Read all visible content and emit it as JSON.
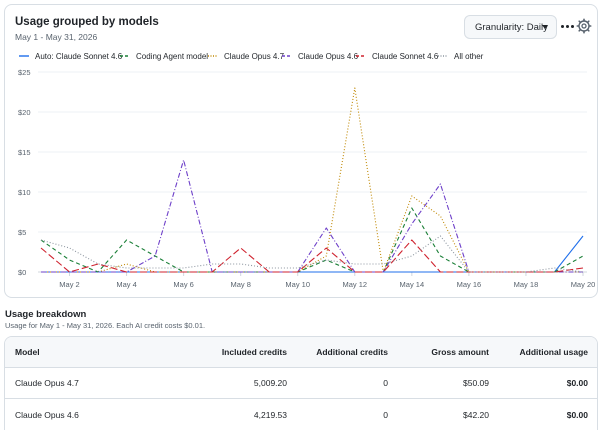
{
  "usage_card": {
    "title": "Usage grouped by models",
    "date_range": "May 1 - May 31, 2026",
    "granularity_label": "Granularity: Daily",
    "more_icon": "kebab-horizontal-icon",
    "settings_icon": "gear-icon"
  },
  "chart_data": {
    "type": "line",
    "title": "",
    "xlabel": "",
    "ylabel": "",
    "x_tick_labels": [
      "May 2",
      "May 4",
      "May 6",
      "May 8",
      "May 10",
      "May 12",
      "May 14",
      "May 16",
      "May 18",
      "May 20"
    ],
    "y_tick_labels": [
      "$0",
      "$5",
      "$10",
      "$15",
      "$20",
      "$25"
    ],
    "ylim": [
      0,
      25
    ],
    "x": [
      1,
      2,
      3,
      4,
      5,
      6,
      7,
      8,
      9,
      10,
      11,
      12,
      13,
      14,
      15,
      16,
      17,
      18,
      19,
      20
    ],
    "grid": "horizontal",
    "legend_position": "top-left",
    "series": [
      {
        "name": "Auto: Claude Sonnet 4.6",
        "color": "#1f6feb",
        "dash": "solid",
        "values": [
          0,
          0,
          0,
          0,
          0,
          0,
          0,
          0,
          0,
          0,
          0,
          0,
          0,
          0,
          0,
          0,
          0,
          0,
          0,
          4.5
        ]
      },
      {
        "name": "Coding Agent model",
        "color": "#1a7f37",
        "dash": "dashed",
        "values": [
          4,
          1.5,
          0,
          4,
          2,
          0,
          0,
          0,
          0,
          0,
          1.5,
          0,
          0,
          8,
          2,
          0,
          0,
          0,
          0,
          2
        ]
      },
      {
        "name": "Claude Opus 4.7",
        "color": "#bf8700",
        "dash": "dotted",
        "values": [
          0,
          0,
          0,
          1,
          0,
          0,
          0,
          0,
          0,
          0,
          2,
          23,
          0,
          9.5,
          7,
          0,
          0,
          0,
          0,
          0
        ]
      },
      {
        "name": "Claude Opus 4.6",
        "color": "#6e40c9",
        "dash": "dashdot",
        "values": [
          0,
          0,
          0,
          0,
          2,
          14,
          0,
          0,
          0,
          0,
          5.5,
          0,
          0,
          6,
          11,
          0,
          0,
          0,
          0,
          0
        ]
      },
      {
        "name": "Claude Sonnet 4.6",
        "color": "#cf222e",
        "dash": "longdash",
        "values": [
          3,
          0,
          1,
          0,
          0,
          0,
          0,
          3,
          0,
          0,
          3,
          0,
          0,
          4,
          0,
          0,
          0,
          0,
          0,
          0.5
        ]
      },
      {
        "name": "All other",
        "color": "#8c959f",
        "dash": "dotted",
        "values": [
          4,
          3,
          1,
          0.5,
          0.5,
          0.5,
          1,
          1,
          0.5,
          0.5,
          1.5,
          1,
          1,
          2,
          4.5,
          0,
          0,
          0,
          0.5,
          0
        ]
      }
    ]
  },
  "breakdown": {
    "title": "Usage breakdown",
    "subtitle": "Usage for May 1 - May 31, 2026. Each AI credit costs $0.01.",
    "columns": [
      "Model",
      "Included credits",
      "Additional credits",
      "Gross amount",
      "Additional usage"
    ],
    "rows": [
      {
        "model": "Claude Opus 4.7",
        "included": "5,009.20",
        "additional": "0",
        "gross": "$50.09",
        "usage": "$0.00"
      },
      {
        "model": "Claude Opus 4.6",
        "included": "4,219.53",
        "additional": "0",
        "gross": "$42.20",
        "usage": "$0.00"
      }
    ]
  }
}
